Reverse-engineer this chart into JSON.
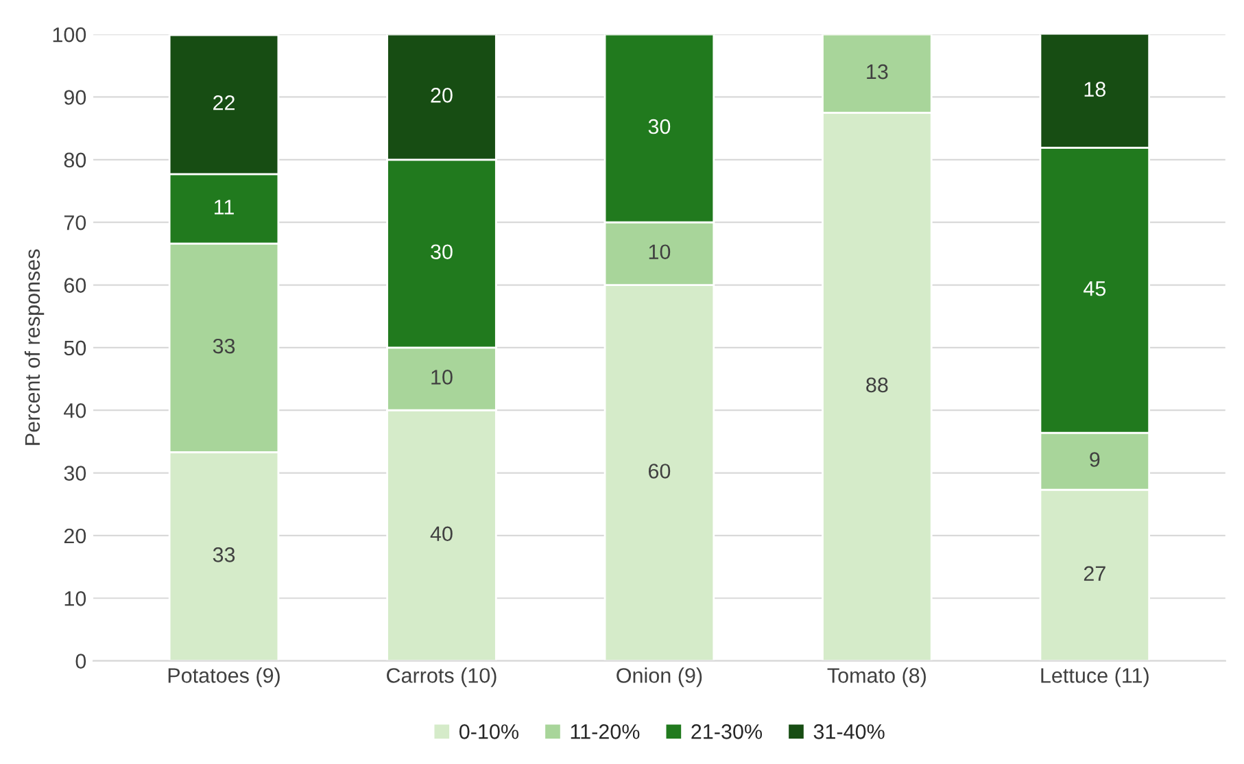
{
  "chart_data": {
    "type": "bar",
    "stacked": true,
    "ylabel": "Percent of responses",
    "categories": [
      "Potatoes (9)",
      "Carrots (10)",
      "Onion (9)",
      "Tomato (8)",
      "Lettuce (11)"
    ],
    "series": [
      {
        "name": "0-10%",
        "color": "#d5ebc9",
        "values": [
          33.3,
          40,
          60,
          87.5,
          27.3
        ],
        "value_labels": [
          "33",
          "40",
          "60",
          "88",
          "27"
        ]
      },
      {
        "name": "11-20%",
        "color": "#a8d59a",
        "values": [
          33.3,
          10,
          10,
          12.5,
          9.1
        ],
        "value_labels": [
          "33",
          "10",
          "10",
          "13",
          "9"
        ]
      },
      {
        "name": "21-30%",
        "color": "#217a1e",
        "values": [
          11.1,
          30,
          30,
          null,
          45.5
        ],
        "value_labels": [
          "11",
          "30",
          "30",
          null,
          "45"
        ]
      },
      {
        "name": "31-40%",
        "color": "#174d13",
        "values": [
          22.2,
          20,
          null,
          null,
          18.2
        ],
        "value_labels": [
          "22",
          "20",
          null,
          null,
          "18"
        ]
      }
    ],
    "ylim": [
      0,
      100
    ],
    "yticks": [
      0,
      10,
      20,
      30,
      40,
      50,
      60,
      70,
      80,
      90,
      100
    ],
    "grid": "y",
    "legend": "bottom"
  }
}
